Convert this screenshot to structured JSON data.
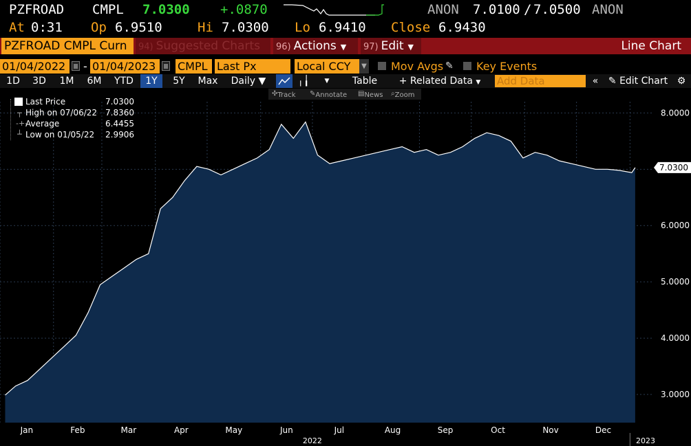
{
  "quote": {
    "ticker": "PZFROAD",
    "source": "CMPL",
    "last": "7.0300",
    "change": "+.0870",
    "bid_source": "ANON",
    "bid": "7.0100",
    "slash": "/",
    "ask": "7.0500",
    "ask_source": "ANON",
    "time_label": "At",
    "time": "0:31",
    "open_label": "Op",
    "open": "6.9510",
    "high_label": "Hi",
    "high": "7.0300",
    "low_label": "Lo",
    "low": "6.9410",
    "close_label": "Close",
    "close": "6.9430"
  },
  "menubar": {
    "ticker_field": "PZFROAD CMPL Curn",
    "suggested_num": "94)",
    "suggested": "Suggested Charts",
    "actions_num": "96)",
    "actions": "Actions",
    "edit_num": "97)",
    "edit": "Edit",
    "title": "Line Chart"
  },
  "params": {
    "start_date": "01/04/2022",
    "dash": "-",
    "end_date": "01/04/2023",
    "source": "CMPL",
    "field": "Last Px",
    "currency": "Local CCY",
    "mov_avgs": "Mov Avgs",
    "key_events": "Key Events"
  },
  "tools": {
    "ranges": [
      "1D",
      "3D",
      "1M",
      "6M",
      "YTD",
      "1Y",
      "5Y",
      "Max"
    ],
    "active_range": "1Y",
    "frequency": "Daily",
    "table": "Table",
    "related": "Related Data",
    "add_data_placeholder": "Add Data",
    "edit_chart": "Edit Chart"
  },
  "mini_tools": {
    "track": "Track",
    "annotate": "Annotate",
    "news": "News",
    "zoom": "Zoom"
  },
  "legend": {
    "last_label": "Last Price",
    "last_value": "7.0300",
    "high_label": "High on 07/06/22",
    "high_value": "7.8360",
    "avg_label": "Average",
    "avg_value": "6.4455",
    "low_label": "Low on 01/05/22",
    "low_value": "2.9906"
  },
  "colors": {
    "accent_orange": "#f7a21b",
    "menubar_red": "#8c1116",
    "change_green": "#39d83b",
    "area_fill": "#0f2b4c",
    "line": "#ffffff"
  },
  "chart_data": {
    "type": "area",
    "y_tick_labels": [
      "8.0000",
      "7.0000",
      "6.0000",
      "5.0000",
      "4.0000",
      "3.0000"
    ],
    "y_ticks": [
      8,
      7,
      6,
      5,
      4,
      3
    ],
    "ylim": [
      2.5,
      8.2
    ],
    "x_tick_labels": [
      "Jan",
      "Feb",
      "Mar",
      "Apr",
      "May",
      "Jun",
      "Jul",
      "Aug",
      "Sep",
      "Oct",
      "Nov",
      "Dec"
    ],
    "year_labels": [
      "2022",
      "2023"
    ],
    "last_value_label": "7.0300",
    "x": [
      "2022-01-04",
      "2022-01-10",
      "2022-01-17",
      "2022-01-24",
      "2022-01-31",
      "2022-02-07",
      "2022-02-14",
      "2022-02-21",
      "2022-02-28",
      "2022-03-07",
      "2022-03-14",
      "2022-03-21",
      "2022-03-28",
      "2022-04-04",
      "2022-04-11",
      "2022-04-18",
      "2022-04-25",
      "2022-05-02",
      "2022-05-09",
      "2022-05-16",
      "2022-05-23",
      "2022-05-30",
      "2022-06-06",
      "2022-06-13",
      "2022-06-20",
      "2022-06-27",
      "2022-07-04",
      "2022-07-11",
      "2022-07-18",
      "2022-07-25",
      "2022-08-01",
      "2022-08-08",
      "2022-08-15",
      "2022-08-22",
      "2022-08-29",
      "2022-09-05",
      "2022-09-12",
      "2022-09-19",
      "2022-09-26",
      "2022-10-03",
      "2022-10-10",
      "2022-10-17",
      "2022-10-24",
      "2022-10-31",
      "2022-11-07",
      "2022-11-14",
      "2022-11-21",
      "2022-11-28",
      "2022-12-05",
      "2022-12-12",
      "2022-12-19",
      "2022-12-26",
      "2023-01-02",
      "2023-01-04"
    ],
    "values": [
      2.99,
      3.15,
      3.25,
      3.45,
      3.65,
      3.85,
      4.05,
      4.45,
      4.95,
      5.1,
      5.25,
      5.4,
      5.5,
      6.3,
      6.5,
      6.8,
      7.05,
      7.0,
      6.9,
      7.0,
      7.1,
      7.2,
      7.35,
      7.8,
      7.55,
      7.84,
      7.25,
      7.1,
      7.15,
      7.2,
      7.25,
      7.3,
      7.35,
      7.4,
      7.3,
      7.35,
      7.25,
      7.3,
      7.4,
      7.55,
      7.65,
      7.6,
      7.5,
      7.2,
      7.3,
      7.25,
      7.15,
      7.1,
      7.05,
      7.0,
      7.0,
      6.98,
      6.94,
      7.03
    ]
  }
}
